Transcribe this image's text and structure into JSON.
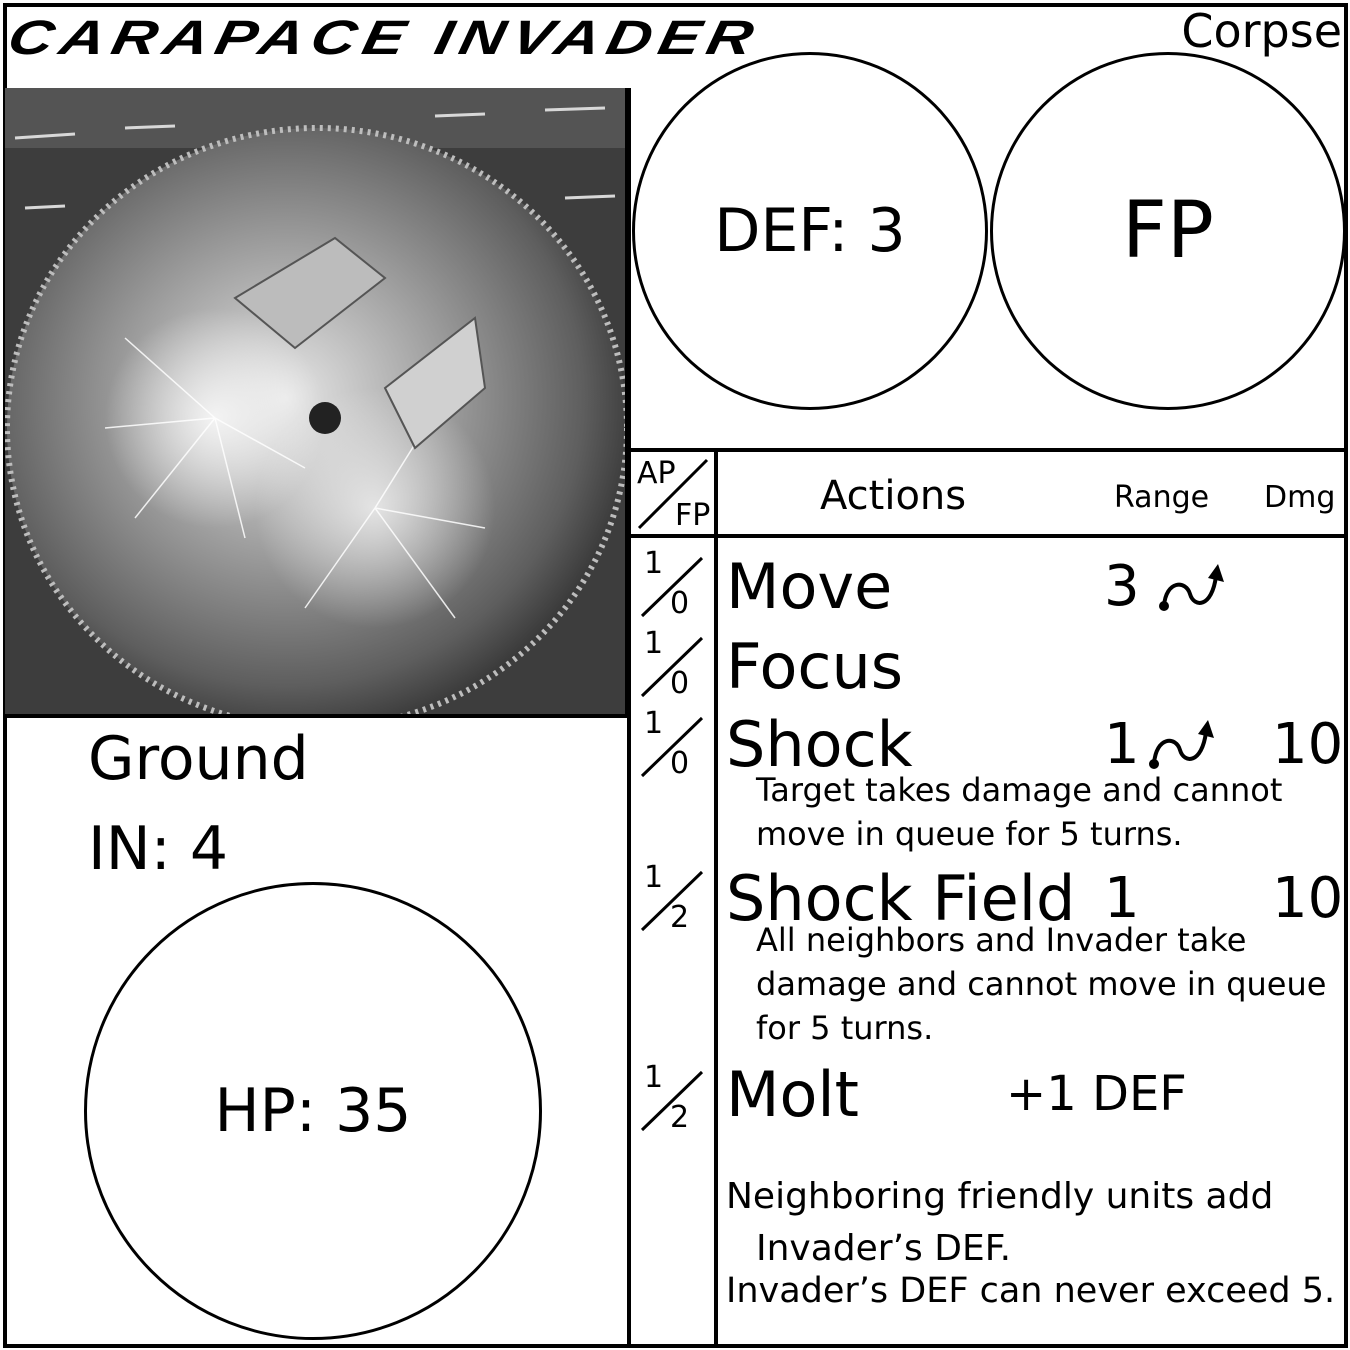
{
  "card": {
    "title": "CARAPACE INVADER",
    "faction": "Corpse"
  },
  "stats": {
    "def": "DEF: 3",
    "fp": "FP",
    "terrain": "Ground",
    "initiative": "IN: 4",
    "hp": "HP: 35"
  },
  "table_header": {
    "ap": "AP",
    "fp": "FP",
    "actions": "Actions",
    "range": "Range",
    "dmg": "Dmg"
  },
  "actions": [
    {
      "ap": "1",
      "fp": "0",
      "name": "Move",
      "range": "3",
      "range_icon": "curved-arrow-icon",
      "dmg": "",
      "desc": ""
    },
    {
      "ap": "1",
      "fp": "0",
      "name": "Focus",
      "range": "",
      "range_icon": "",
      "dmg": "",
      "desc": ""
    },
    {
      "ap": "1",
      "fp": "0",
      "name": "Shock",
      "range": "1",
      "range_icon": "curved-arrow-icon",
      "dmg": "10",
      "desc": "Target takes damage and cannot move in queue for 5 turns."
    },
    {
      "ap": "1",
      "fp": "2",
      "name": "Shock Field",
      "range": "1",
      "range_icon": "",
      "dmg": "10",
      "desc": "All neighbors and Invader take damage and cannot move in queue for 5 turns."
    },
    {
      "ap": "1",
      "fp": "2",
      "name": "Molt",
      "range": "+1 DEF",
      "range_icon": "",
      "dmg": "",
      "desc": ""
    }
  ],
  "notes": {
    "line1": "Neighboring friendly units add",
    "line2": "Invader’s DEF.",
    "line3": "Invader’s DEF can never exceed 5."
  },
  "colors": {
    "ink": "#000000",
    "paper": "#ffffff"
  }
}
